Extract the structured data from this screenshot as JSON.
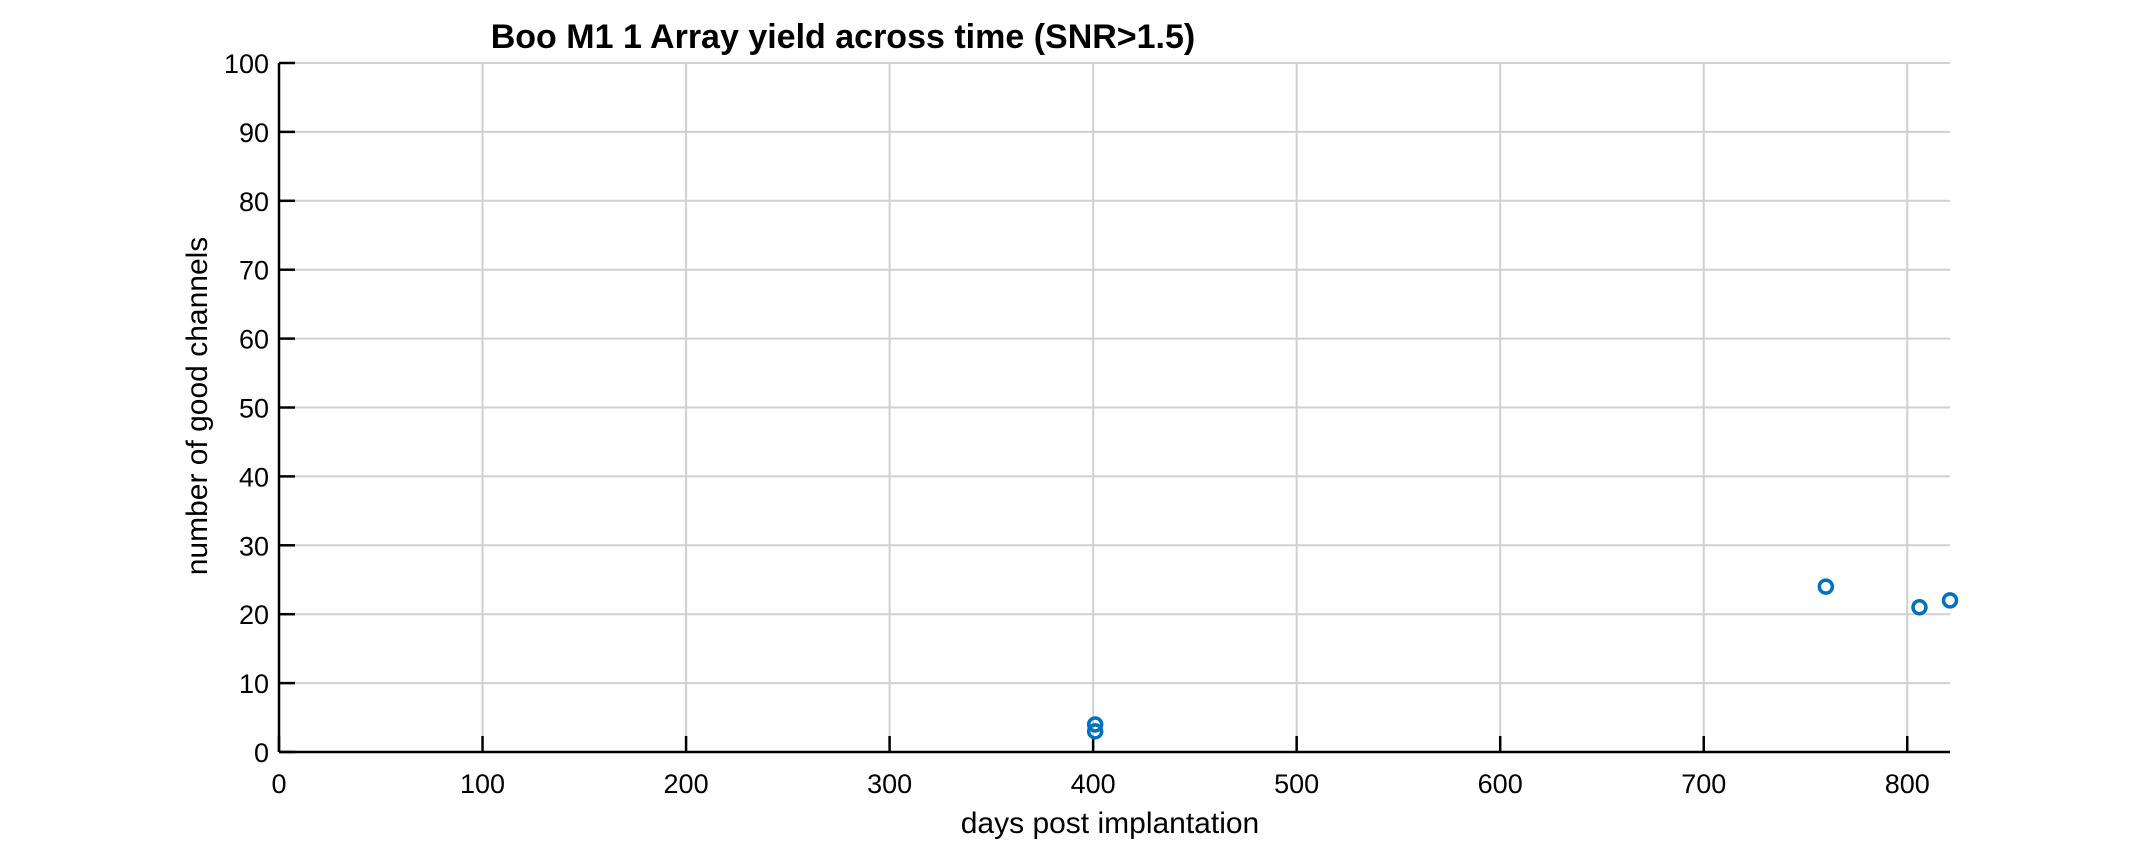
{
  "chart_data": {
    "type": "scatter",
    "title": "Boo M1 1 Array yield across time (SNR>1.5)",
    "xlabel": "days post implantation",
    "ylabel": "number of good channels",
    "xlim": [
      0,
      821
    ],
    "ylim": [
      0,
      100
    ],
    "xticks": [
      0,
      100,
      200,
      300,
      400,
      500,
      600,
      700,
      800
    ],
    "yticks": [
      0,
      10,
      20,
      30,
      40,
      50,
      60,
      70,
      80,
      90,
      100
    ],
    "grid": true,
    "marker": "open-circle",
    "color": "#0072BD",
    "points": [
      {
        "x": 401,
        "y": 4
      },
      {
        "x": 401,
        "y": 3
      },
      {
        "x": 760,
        "y": 24
      },
      {
        "x": 806,
        "y": 21
      },
      {
        "x": 821,
        "y": 22
      }
    ]
  }
}
